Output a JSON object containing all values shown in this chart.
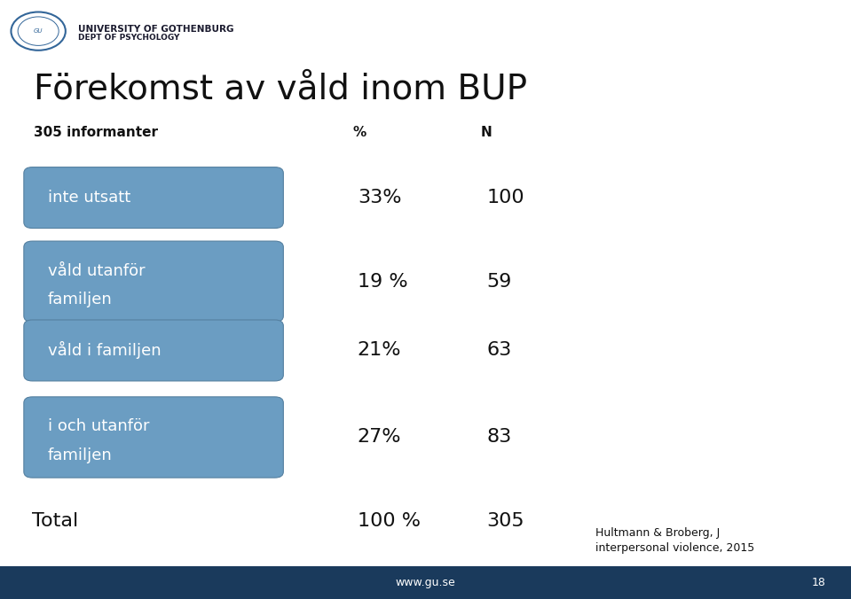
{
  "title": "Förekomst av våld inom BUP",
  "subtitle": "305 informanter",
  "col_percent": "%",
  "col_n": "N",
  "rows": [
    {
      "label": "inte utsatt",
      "label_line2": null,
      "percent": "33%",
      "n": "100"
    },
    {
      "label": "våld utanför",
      "label_line2": "familjen",
      "percent": "19 %",
      "n": "59"
    },
    {
      "label": "våld i familjen",
      "label_line2": null,
      "percent": "21%",
      "n": "63"
    },
    {
      "label": "i och utanför",
      "label_line2": "familjen",
      "percent": "27%",
      "n": "83"
    }
  ],
  "total_label": "Total",
  "total_percent": "100 %",
  "total_n": "305",
  "footnote1": "Hultmann & Broberg, J",
  "footnote2": "interpersonal violence, 2015",
  "footer_text": "www.gu.se",
  "footer_page": "18",
  "box_color": "#6B9DC2",
  "bg_color": "#FFFFFF",
  "footer_bar_color": "#1A3A5C",
  "text_color": "#111111",
  "uni_text_color": "#1A1A2E",
  "title_fontsize": 28,
  "subtitle_fontsize": 11,
  "row_label_fontsize": 13,
  "row_data_fontsize": 16,
  "total_fontsize": 16,
  "footnote_fontsize": 9,
  "footer_fontsize": 9,
  "uni_fontsize1": 7.5,
  "uni_fontsize2": 6.5
}
